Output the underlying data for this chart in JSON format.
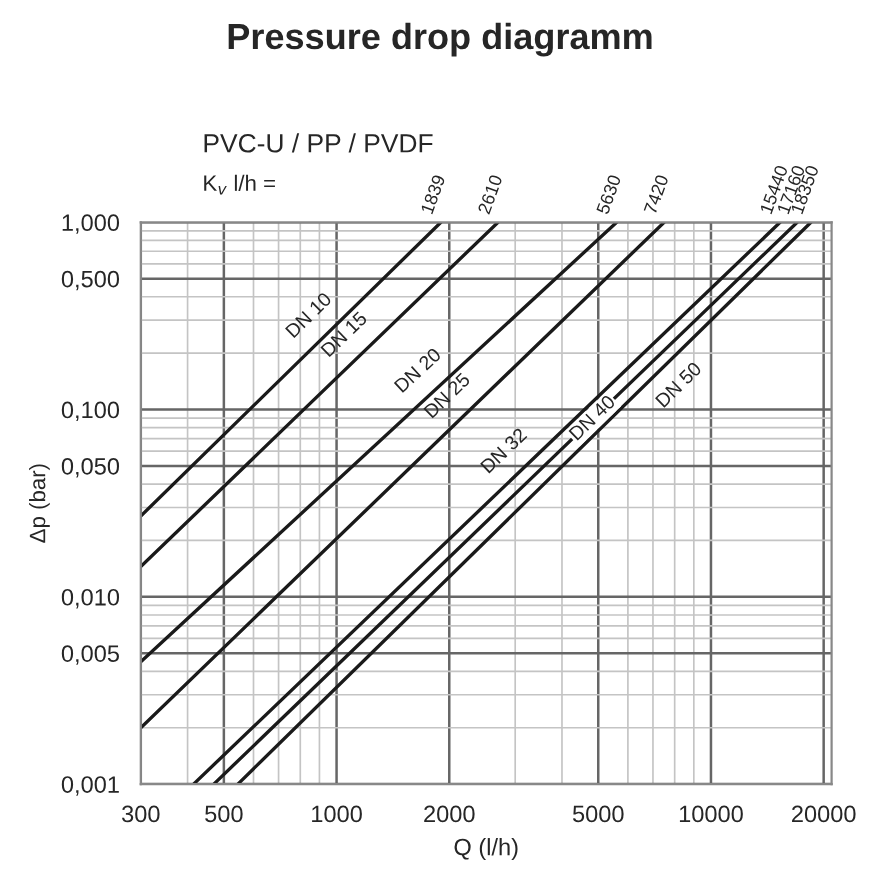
{
  "chart_data": {
    "type": "line",
    "title": "Pressure drop diagramm",
    "subtitle": "PVC-U / PP / PVDF",
    "xlabel": "Q (l/h)",
    "ylabel": "Δp (bar)",
    "log": "xy",
    "grid": true,
    "legend": false,
    "marker": "none",
    "line_style": "solid",
    "xlim": [
      300,
      21000
    ],
    "ylim": [
      0.001,
      1.0
    ],
    "xticks": [
      300,
      500,
      1000,
      2000,
      5000,
      10000,
      20000
    ],
    "yticks": [
      {
        "value": 0.001,
        "label": "0,001"
      },
      {
        "value": 0.005,
        "label": "0,005"
      },
      {
        "value": 0.01,
        "label": "0,010"
      },
      {
        "value": 0.05,
        "label": "0,050"
      },
      {
        "value": 0.1,
        "label": "0,100"
      },
      {
        "value": 0.5,
        "label": "0,500"
      },
      {
        "value": 1.0,
        "label": "1,000"
      }
    ],
    "series": [
      {
        "name": "DN 10",
        "color": "#1a1a1a",
        "x": [
          300,
          1900
        ],
        "values": [
          0.027,
          1.0
        ]
      },
      {
        "name": "DN 15",
        "color": "#1a1a1a",
        "x": [
          300,
          2700
        ],
        "values": [
          0.0145,
          1.0
        ]
      },
      {
        "name": "DN 20",
        "color": "#1a1a1a",
        "x": [
          300,
          5600
        ],
        "values": [
          0.0045,
          1.0
        ]
      },
      {
        "name": "DN 25",
        "color": "#1a1a1a",
        "x": [
          300,
          7500
        ],
        "values": [
          0.002,
          1.0
        ]
      },
      {
        "name": "DN 32",
        "color": "#1a1a1a",
        "x": [
          415,
          15300
        ],
        "values": [
          0.001,
          1.0
        ]
      },
      {
        "name": "DN 40",
        "color": "#1a1a1a",
        "x": [
          470,
          17000
        ],
        "values": [
          0.001,
          1.0
        ]
      },
      {
        "name": "DN 50",
        "color": "#1a1a1a",
        "x": [
          545,
          18500
        ],
        "values": [
          0.001,
          1.0
        ]
      }
    ],
    "annotations": [
      "K$_{v}$ l/h =",
      {
        "text": "1839",
        "x": 1900,
        "y": 1.0
      },
      {
        "text": "2610",
        "x": 2700,
        "y": 1.0
      },
      {
        "text": "5630",
        "x": 5600,
        "y": 1.0
      },
      {
        "text": "7420",
        "x": 7500,
        "y": 1.0
      },
      {
        "text": "15440",
        "x": 15300,
        "y": 1.0
      },
      {
        "text": "17160",
        "x": 17000,
        "y": 1.0
      },
      {
        "text": "18350",
        "x": 18500,
        "y": 1.0
      }
    ]
  }
}
